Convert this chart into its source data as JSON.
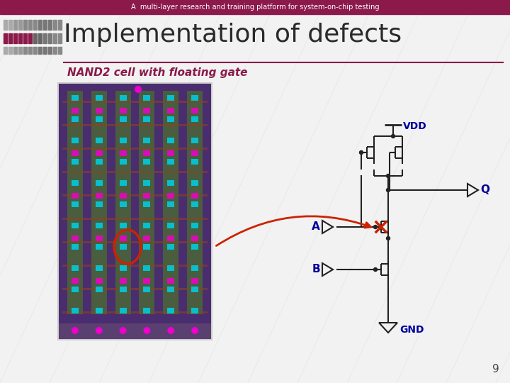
{
  "bg_color": "#f2f2f2",
  "header_color": "#8B1A4A",
  "header_text": "A  multi-layer research and training platform for system-on-chip testing",
  "header_text_color": "#ffffff",
  "title_text": "Implementation of defects",
  "title_color": "#2a2a2a",
  "subtitle_text": "NAND2 cell with floating gate",
  "subtitle_color": "#8B1A4A",
  "line_color": "#8B1A4A",
  "circuit_color": "#000099",
  "circuit_line_color": "#222222",
  "x_mark_color": "#cc2200",
  "arrow_color": "#cc2200",
  "vdd_label": "VDD",
  "gnd_label": "GND",
  "q_label": "Q",
  "a_label": "A",
  "b_label": "B",
  "page_number": "9",
  "slide_bg": "#f2f2f2",
  "chip_bg": "#4a2d6e",
  "chip_green": "#4a6e30",
  "chip_cyan": "#00ccdd",
  "chip_magenta": "#ee00cc",
  "chip_red_line": "#884422",
  "chip_border": "#aaaaaa",
  "deco_gray1": "#999999",
  "deco_gray2": "#888888",
  "deco_gray3": "#777777",
  "deco_gray4": "#666666",
  "deco_maroon": "#8B1A4A"
}
